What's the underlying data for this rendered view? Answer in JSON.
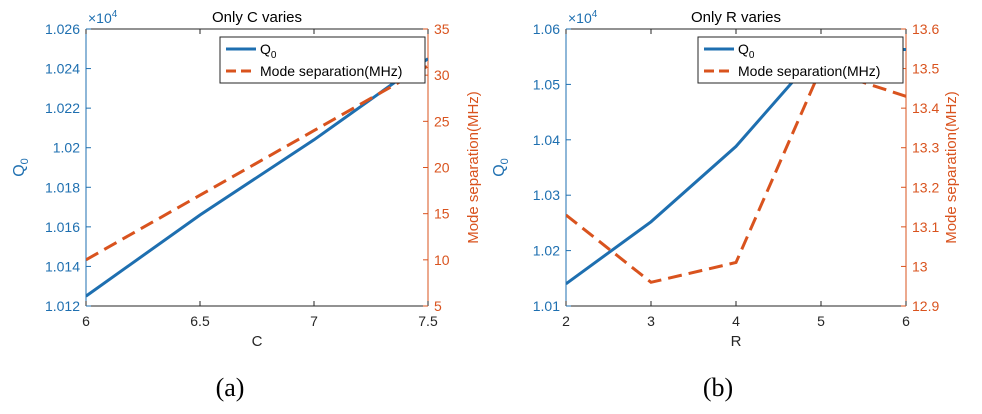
{
  "colors": {
    "left_axis": "#1e6fb0",
    "right_axis": "#d9531e",
    "axis_frame": "#262626"
  },
  "chart_data": [
    {
      "type": "line",
      "title": "Only C varies",
      "xlabel": "C",
      "ylabel_left": "Q",
      "ylabel_left_sub": "0",
      "ylabel_right": "Mode separation(MHz)",
      "exponent_label": "×10",
      "exponent_power": "4",
      "xlim": [
        6,
        7.5
      ],
      "ylim_left": [
        1.012,
        1.026
      ],
      "ylim_right": [
        5,
        35
      ],
      "xticks": [
        6,
        6.5,
        7,
        7.5
      ],
      "xtick_labels": [
        "6",
        "6.5",
        "7",
        "7.5"
      ],
      "yticks_left": [
        1.012,
        1.014,
        1.016,
        1.018,
        1.02,
        1.022,
        1.024,
        1.026
      ],
      "ytick_labels_left": [
        "1.012",
        "1.014",
        "1.016",
        "1.018",
        "1.02",
        "1.022",
        "1.024",
        "1.026"
      ],
      "yticks_right": [
        5,
        10,
        15,
        20,
        25,
        30,
        35
      ],
      "ytick_labels_right": [
        "5",
        "10",
        "15",
        "20",
        "25",
        "30",
        "35"
      ],
      "legend": {
        "position": "top-right",
        "entries": [
          {
            "text": "Q",
            "sub": "0"
          },
          {
            "text": "Mode separation(MHz)",
            "sub": ""
          }
        ]
      },
      "series": [
        {
          "name": "Q0",
          "axis": "left",
          "style": "solid",
          "x": [
            6,
            6.5,
            7,
            7.5
          ],
          "y": [
            1.0125,
            1.0166,
            1.0204,
            1.0245
          ]
        },
        {
          "name": "Mode separation(MHz)",
          "axis": "right",
          "style": "dashed",
          "x": [
            6,
            6.5,
            7,
            7.5
          ],
          "y": [
            10,
            17,
            24,
            31
          ]
        }
      ],
      "caption": "(a)"
    },
    {
      "type": "line",
      "title": "Only R varies",
      "xlabel": "R",
      "ylabel_left": "Q",
      "ylabel_left_sub": "0",
      "ylabel_right": "Mode separation(MHz)",
      "exponent_label": "×10",
      "exponent_power": "4",
      "xlim": [
        2,
        6
      ],
      "ylim_left": [
        1.01,
        1.06
      ],
      "ylim_right": [
        12.9,
        13.6
      ],
      "xticks": [
        2,
        3,
        4,
        5,
        6
      ],
      "xtick_labels": [
        "2",
        "3",
        "4",
        "5",
        "6"
      ],
      "yticks_left": [
        1.01,
        1.02,
        1.03,
        1.04,
        1.05,
        1.06
      ],
      "ytick_labels_left": [
        "1.01",
        "1.02",
        "1.03",
        "1.04",
        "1.05",
        "1.06"
      ],
      "yticks_right": [
        12.9,
        13,
        13.1,
        13.2,
        13.3,
        13.4,
        13.5,
        13.6
      ],
      "ytick_labels_right": [
        "12.9",
        "13",
        "13.1",
        "13.2",
        "13.3",
        "13.4",
        "13.5",
        "13.6"
      ],
      "legend": {
        "position": "top-right",
        "entries": [
          {
            "text": "Q",
            "sub": "0"
          },
          {
            "text": "Mode separation(MHz)",
            "sub": ""
          }
        ]
      },
      "series": [
        {
          "name": "Q0",
          "axis": "left",
          "style": "solid",
          "x": [
            2,
            3,
            4,
            5,
            6
          ],
          "y": [
            1.014,
            1.0252,
            1.0388,
            1.0563,
            1.0563
          ]
        },
        {
          "name": "Mode separation(MHz)",
          "axis": "right",
          "style": "dashed",
          "x": [
            2,
            3,
            4,
            5,
            6
          ],
          "y": [
            13.13,
            12.96,
            13.01,
            13.5,
            13.43
          ]
        }
      ],
      "caption": "(b)"
    }
  ]
}
